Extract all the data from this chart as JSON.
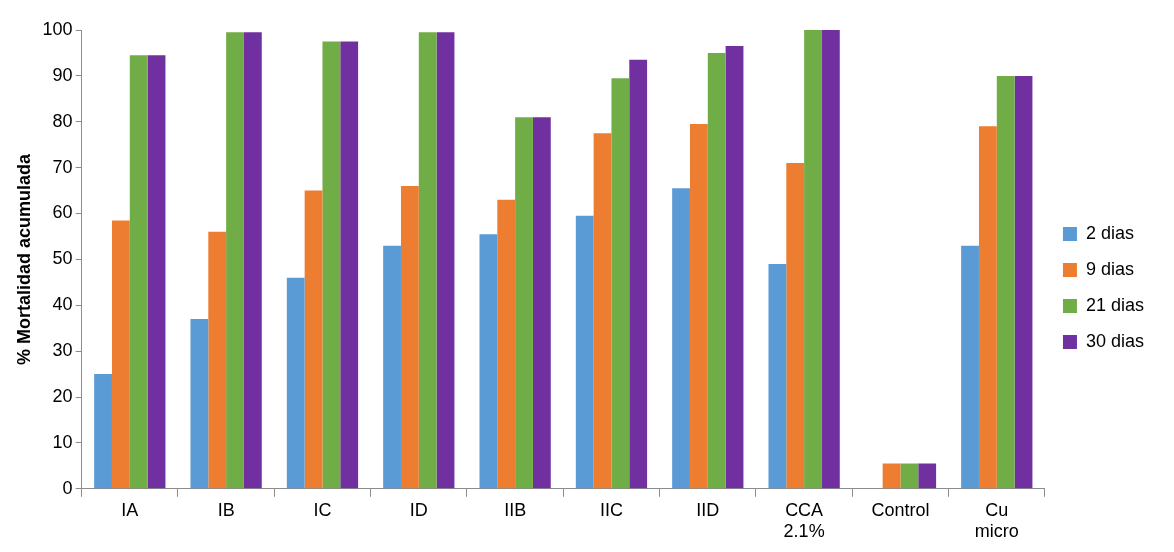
{
  "chart_data": {
    "type": "bar",
    "ylabel": "% Mortalidad acumulada",
    "categories": [
      "IA",
      "IB",
      "IC",
      "ID",
      "IIB",
      "IIC",
      "IID",
      "CCA 2.1%",
      "Control",
      "Cu micro"
    ],
    "series": [
      {
        "name": "2 dias",
        "color": "#5b9bd5",
        "values": [
          25,
          37,
          46,
          53,
          55.5,
          59.5,
          65.5,
          49,
          0,
          53
        ]
      },
      {
        "name": "9 dias",
        "color": "#ed7d31",
        "values": [
          58.5,
          56,
          65,
          66,
          63,
          77.5,
          79.5,
          71,
          5.5,
          79
        ]
      },
      {
        "name": "21 dias",
        "color": "#70ad47",
        "values": [
          94.5,
          99.5,
          97.5,
          99.5,
          81,
          89.5,
          95,
          100,
          5.5,
          90
        ]
      },
      {
        "name": "30 dias",
        "color": "#7030a0",
        "values": [
          94.5,
          99.5,
          97.5,
          99.5,
          81,
          93.5,
          96.5,
          100,
          5.5,
          90
        ]
      }
    ],
    "ylim": [
      0,
      100
    ],
    "yticks": [
      0,
      10,
      20,
      30,
      40,
      50,
      60,
      70,
      80,
      90,
      100
    ],
    "grid": false,
    "legend": "right"
  }
}
